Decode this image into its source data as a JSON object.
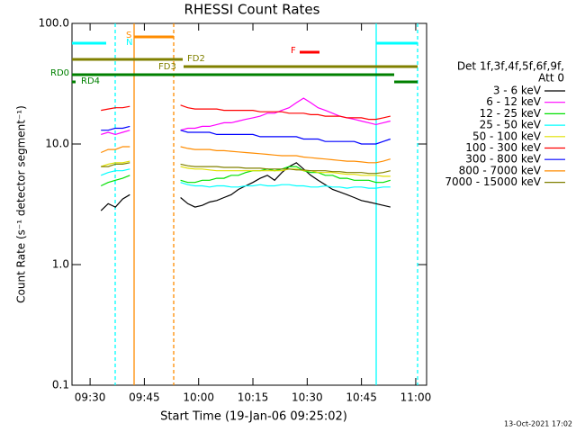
{
  "chart_data": {
    "type": "line",
    "title": "RHESSI Count Rates",
    "x_label": "Start Time (19-Jan-06 09:25:02)",
    "y_label": "Count Rate (s⁻¹ detector segment⁻¹)",
    "footer": "13-Oct-2021 17:02",
    "legend_title": [
      "Det 1f,3f,4f,5f,6f,9f,",
      "Att 0"
    ],
    "log_y": true,
    "xlim": [
      "09:25",
      "11:03"
    ],
    "xticks": [
      "09:30",
      "09:45",
      "10:00",
      "10:15",
      "10:30",
      "10:45",
      "11:00"
    ],
    "ylim": [
      0.1,
      100
    ],
    "yticks": [
      0.1,
      {
        "value": 1,
        "label": "1.0"
      },
      {
        "value": 10,
        "label": "10.0"
      },
      {
        "value": 100,
        "label": "100.0"
      }
    ],
    "annotations": [
      "S",
      "N",
      "F",
      "FD2",
      "FD3",
      "RD0",
      "RD4"
    ],
    "x": [
      "09:33",
      "09:35",
      "09:37",
      "09:39",
      "09:41",
      "09:47",
      "09:55",
      "09:57",
      "09:59",
      "10:01",
      "10:03",
      "10:05",
      "10:07",
      "10:09",
      "10:11",
      "10:13",
      "10:15",
      "10:17",
      "10:19",
      "10:21",
      "10:23",
      "10:25",
      "10:27",
      "10:29",
      "10:31",
      "10:33",
      "10:35",
      "10:37",
      "10:39",
      "10:41",
      "10:43",
      "10:45",
      "10:47",
      "10:49",
      "10:51",
      "10:53"
    ],
    "series": [
      {
        "name": "3 - 6 keV",
        "color": "#000000",
        "values": [
          2.8,
          3.2,
          3.0,
          3.5,
          3.8,
          null,
          3.6,
          3.2,
          3.0,
          3.1,
          3.3,
          3.4,
          3.6,
          3.8,
          4.2,
          4.5,
          4.8,
          5.2,
          5.5,
          5.0,
          5.8,
          6.5,
          7.0,
          6.2,
          5.5,
          5.0,
          4.6,
          4.2,
          4.0,
          3.8,
          3.6,
          3.4,
          3.3,
          3.2,
          3.1,
          3.0
        ]
      },
      {
        "name": "6 - 12 keV",
        "color": "#ff00ff",
        "values": [
          12,
          12.5,
          12,
          12.5,
          13,
          null,
          13,
          13.5,
          13.5,
          14,
          14,
          14.5,
          15,
          15,
          15.5,
          16,
          16.5,
          17,
          18,
          18,
          19,
          20,
          22,
          24,
          22,
          20,
          19,
          18,
          17,
          16.5,
          16,
          15.5,
          15,
          14.5,
          15,
          15.5
        ]
      },
      {
        "name": "12 - 25 keV",
        "color": "#00e000",
        "values": [
          4.5,
          4.8,
          5,
          5.2,
          5.5,
          null,
          5,
          4.8,
          4.8,
          5,
          5,
          5.2,
          5.2,
          5.5,
          5.5,
          5.8,
          6,
          6,
          6.2,
          6,
          6.2,
          6.5,
          6.5,
          6,
          5.8,
          5.8,
          5.5,
          5.5,
          5.2,
          5.2,
          5,
          5,
          5,
          4.8,
          4.8,
          5
        ]
      },
      {
        "name": "25 - 50 keV",
        "color": "#00ffff",
        "values": [
          5.5,
          5.8,
          6,
          6,
          6.2,
          null,
          4.8,
          4.6,
          4.5,
          4.5,
          4.4,
          4.5,
          4.5,
          4.4,
          4.4,
          4.5,
          4.5,
          4.6,
          4.5,
          4.5,
          4.6,
          4.6,
          4.5,
          4.5,
          4.4,
          4.4,
          4.5,
          4.4,
          4.4,
          4.3,
          4.4,
          4.4,
          4.3,
          4.3,
          4.4,
          4.4
        ]
      },
      {
        "name": "50 - 100 keV",
        "color": "#e0e000",
        "values": [
          6.5,
          6.8,
          7,
          7,
          7.2,
          null,
          6.5,
          6.3,
          6.2,
          6.2,
          6.1,
          6,
          6,
          6,
          6,
          6,
          6,
          6,
          6,
          6,
          6,
          6.2,
          6.2,
          6,
          6,
          5.8,
          5.8,
          5.8,
          5.7,
          5.6,
          5.6,
          5.5,
          5.5,
          5.5,
          5.4,
          5.4
        ]
      },
      {
        "name": "100 - 300 keV",
        "color": "#ff0000",
        "values": [
          19,
          19.5,
          20,
          20,
          20.5,
          null,
          21,
          20,
          19.5,
          19.5,
          19.5,
          19.5,
          19,
          19,
          19,
          19,
          19,
          18.5,
          18.5,
          18.5,
          18.5,
          18,
          18,
          18,
          17.5,
          17.5,
          17,
          17,
          17,
          16.5,
          16.5,
          16.5,
          16,
          16,
          16.5,
          17
        ]
      },
      {
        "name": "300 - 800 keV",
        "color": "#0000ff",
        "values": [
          13,
          13,
          13.5,
          13.5,
          14,
          null,
          13,
          12.5,
          12.5,
          12.5,
          12.5,
          12,
          12,
          12,
          12,
          12,
          12,
          11.5,
          11.5,
          11.5,
          11.5,
          11.5,
          11.5,
          11,
          11,
          11,
          10.5,
          10.5,
          10.5,
          10.5,
          10.5,
          10,
          10,
          10,
          10.5,
          11
        ]
      },
      {
        "name": "800 - 7000 keV",
        "color": "#ff8c00",
        "values": [
          8.5,
          9,
          9,
          9.5,
          9.5,
          null,
          9.5,
          9.2,
          9,
          9,
          9,
          8.8,
          8.8,
          8.7,
          8.6,
          8.5,
          8.4,
          8.3,
          8.2,
          8.1,
          8,
          8,
          8,
          7.8,
          7.7,
          7.6,
          7.5,
          7.4,
          7.3,
          7.2,
          7.2,
          7.1,
          7,
          7,
          7.2,
          7.5
        ]
      },
      {
        "name": "7000 - 15000 keV",
        "color": "#808000",
        "values": [
          6.5,
          6.5,
          6.8,
          6.8,
          7,
          null,
          6.8,
          6.6,
          6.5,
          6.5,
          6.5,
          6.5,
          6.4,
          6.4,
          6.4,
          6.3,
          6.3,
          6.3,
          6.2,
          6.2,
          6.2,
          6.2,
          6.1,
          6.1,
          6,
          6,
          6,
          5.9,
          5.9,
          5.8,
          5.8,
          5.8,
          5.7,
          5.7,
          5.8,
          6
        ]
      }
    ]
  }
}
